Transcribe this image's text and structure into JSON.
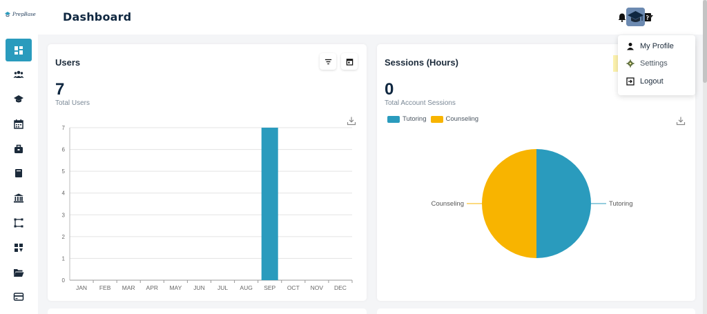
{
  "app": {
    "logo_text": "PrepBase",
    "page_title": "Dashboard"
  },
  "sidebar": {
    "items": [
      {
        "icon": "dashboard-icon",
        "active": true
      },
      {
        "icon": "users-icon"
      },
      {
        "icon": "graduation-cap-icon"
      },
      {
        "icon": "calendar-icon"
      },
      {
        "icon": "briefcase-icon"
      },
      {
        "icon": "book-icon"
      },
      {
        "icon": "bank-icon"
      },
      {
        "icon": "flow-icon"
      },
      {
        "icon": "tasks-icon"
      },
      {
        "icon": "folder-open-icon"
      },
      {
        "icon": "credit-card-icon"
      }
    ]
  },
  "header": {
    "notification_icon": "bell-icon",
    "help_icon": "question-icon",
    "avatar_icon": "graduation-cap-icon"
  },
  "user_menu": {
    "items": [
      {
        "label": "My Profile",
        "icon": "user-icon"
      },
      {
        "label": "Settings",
        "icon": "gear-icon"
      },
      {
        "label": "Logout",
        "icon": "logout-icon"
      }
    ]
  },
  "users_card": {
    "title": "Users",
    "value": "7",
    "value_label": "Total Users",
    "filter_icon": "filter-icon",
    "calendar_icon": "calendar-icon",
    "download_icon": "download-icon"
  },
  "sessions_card": {
    "title": "Sessions (Hours)",
    "value": "0",
    "value_label": "Total Account Sessions",
    "download_icon": "download-icon"
  },
  "colors": {
    "accent": "#2a9bbd",
    "tutoring": "#2a9bbd",
    "counseling": "#f8b400",
    "highlight": "#fdf0a0"
  },
  "chart_data": [
    {
      "type": "bar",
      "categories": [
        "JAN",
        "FEB",
        "MAR",
        "APR",
        "MAY",
        "JUN",
        "JUL",
        "AUG",
        "SEP",
        "OCT",
        "NOV",
        "DEC"
      ],
      "values": [
        0,
        0,
        0,
        0,
        0,
        0,
        0,
        0,
        7,
        0,
        0,
        0
      ],
      "ylim": [
        0,
        7
      ],
      "yticks": [
        "0",
        "1",
        "2",
        "3",
        "4",
        "5",
        "6",
        "7"
      ],
      "title": "",
      "xlabel": "",
      "ylabel": "",
      "grid": true
    },
    {
      "type": "pie",
      "labels": [
        "Tutoring",
        "Counseling"
      ],
      "values": [
        50,
        50
      ],
      "legend": [
        "Tutoring",
        "Counseling"
      ],
      "legend_position": "top-left"
    }
  ]
}
